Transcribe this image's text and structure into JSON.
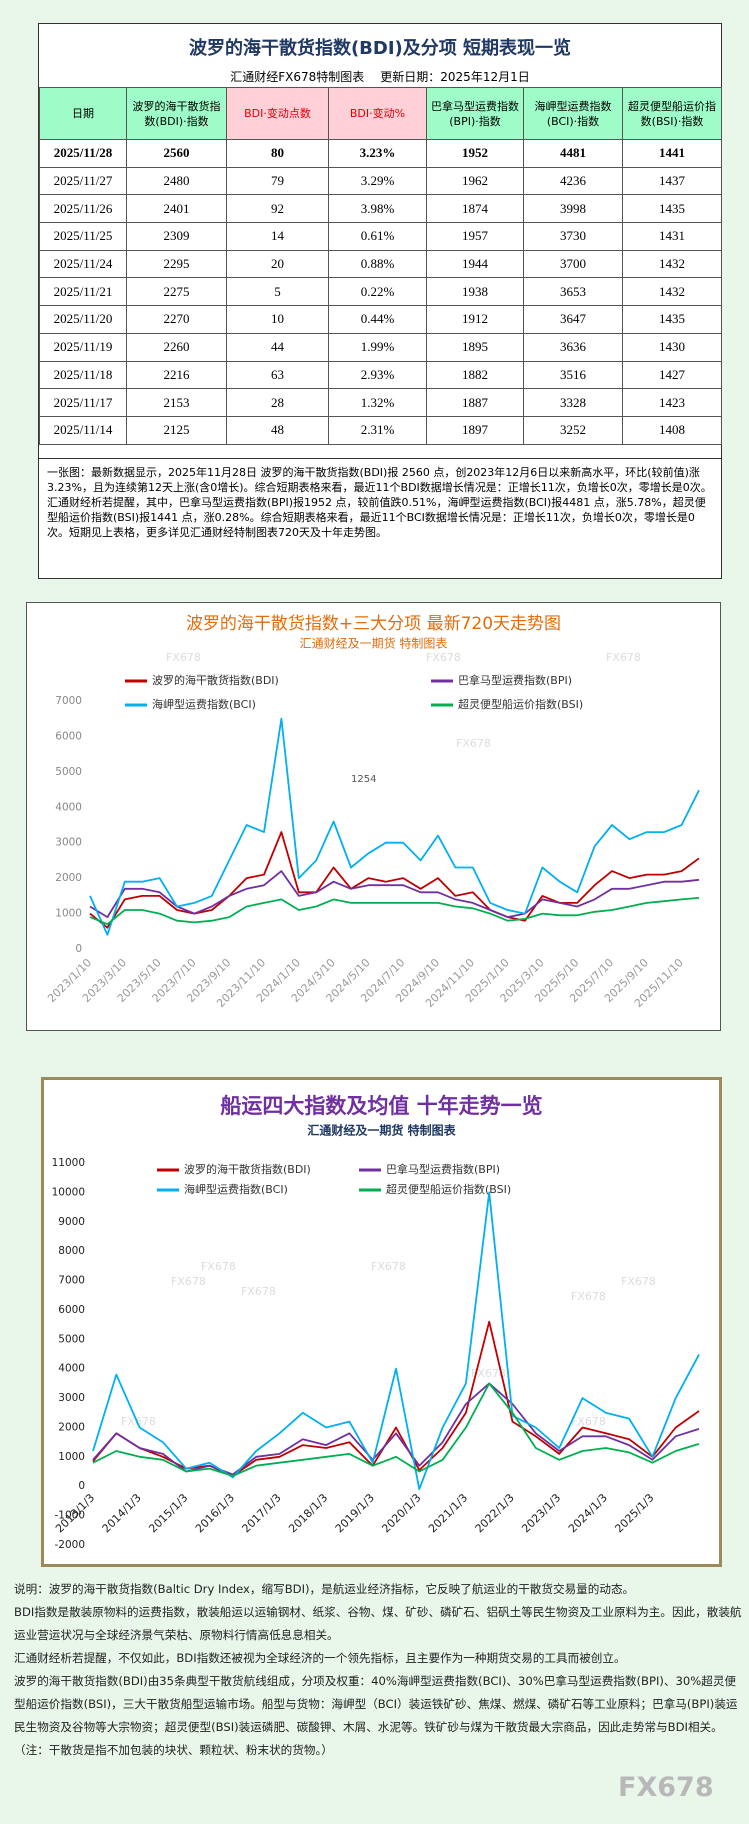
{
  "table": {
    "title": "波罗的海干散货指数(BDI)及分项  短期表现一览",
    "subtitle_left": "汇通财经FX678特制图表",
    "subtitle_right": "更新日期：2025年12月1日",
    "headers": [
      "日期",
      "波罗的海干散货指数(BDI)·指数",
      "BDI·变动点数",
      "BDI·变动%",
      "巴拿马型运费指数(BPI)·指数",
      "海岬型运费指数(BCI)·指数",
      "超灵便型船运价指数(BSI)·指数"
    ],
    "rows": [
      [
        "2025/11/28",
        "2560",
        "80",
        "3.23%",
        "1952",
        "4481",
        "1441"
      ],
      [
        "2025/11/27",
        "2480",
        "79",
        "3.29%",
        "1962",
        "4236",
        "1437"
      ],
      [
        "2025/11/26",
        "2401",
        "92",
        "3.98%",
        "1874",
        "3998",
        "1435"
      ],
      [
        "2025/11/25",
        "2309",
        "14",
        "0.61%",
        "1957",
        "3730",
        "1431"
      ],
      [
        "2025/11/24",
        "2295",
        "20",
        "0.88%",
        "1944",
        "3700",
        "1432"
      ],
      [
        "2025/11/21",
        "2275",
        "5",
        "0.22%",
        "1938",
        "3653",
        "1432"
      ],
      [
        "2025/11/20",
        "2270",
        "10",
        "0.44%",
        "1912",
        "3647",
        "1435"
      ],
      [
        "2025/11/19",
        "2260",
        "44",
        "1.99%",
        "1895",
        "3636",
        "1430"
      ],
      [
        "2025/11/18",
        "2216",
        "63",
        "2.93%",
        "1882",
        "3516",
        "1427"
      ],
      [
        "2025/11/17",
        "2153",
        "28",
        "1.32%",
        "1887",
        "3328",
        "1423"
      ],
      [
        "2025/11/14",
        "2125",
        "48",
        "2.31%",
        "1897",
        "3252",
        "1408"
      ]
    ]
  },
  "summary": "一张图：最新数据显示，2025年11月28日 波罗的海干散货指数(BDI)报 2560 点，创2023年12月6日以来新高水平，环比(较前值)涨3.23%，且为连续第12天上涨(含0增长)。综合短期表格来看，最近11个BDI数据增长情况是：正增长11次，负增长0次，零增长是0次。汇通财经析若提醒，其中，巴拿马型运费指数(BPI)报1952 点，较前值跌0.51%，海岬型运费指数(BCI)报4481 点，涨5.78%，超灵便型船运价指数(BSI)报1441 点，涨0.28%。综合短期表格来看，最近11个BCI数据增长情况是：正增长11次，负增长0次，零增长是0次。短期见上表格，更多详见汇通财经特制图表720天及十年走势图。",
  "chart_data": [
    {
      "type": "line",
      "title": "波罗的海干散货指数+三大分项  最新720天走势图",
      "subtitle": "汇通财经及一期货  特制图表",
      "annotations": [
        "1254"
      ],
      "categories": [
        "2023/1/10",
        null,
        "2023/3/10",
        null,
        "2023/5/10",
        null,
        "2023/7/10",
        null,
        "2023/9/10",
        null,
        "2023/11/10",
        null,
        "2024/1/10",
        null,
        "2024/3/10",
        null,
        "2024/5/10",
        null,
        "2024/7/10",
        null,
        "2024/9/10",
        null,
        "2024/11/10",
        null,
        "2025/1/10",
        null,
        "2025/3/10",
        null,
        "2025/5/10",
        null,
        "2025/7/10",
        null,
        "2025/9/10",
        null,
        "2025/11/10",
        null
      ],
      "ylim": [
        0,
        7000
      ],
      "yticks": [
        0,
        1000,
        2000,
        3000,
        4000,
        5000,
        6000,
        7000
      ],
      "series": [
        {
          "name": "波罗的海干散货指数(BDI)",
          "color": "#c00000",
          "values": [
            1000,
            600,
            1400,
            1500,
            1500,
            1100,
            1000,
            1100,
            1500,
            2000,
            2100,
            3300,
            1600,
            1600,
            2300,
            1700,
            2000,
            1900,
            2000,
            1700,
            2000,
            1500,
            1600,
            1100,
            900,
            800,
            1500,
            1300,
            1300,
            1800,
            2200,
            2000,
            2100,
            2100,
            2200,
            2560
          ]
        },
        {
          "name": "巴拿马型运费指数(BPI)",
          "color": "#7030a0",
          "values": [
            1200,
            900,
            1700,
            1700,
            1600,
            1200,
            1000,
            1200,
            1500,
            1700,
            1800,
            2200,
            1500,
            1600,
            1900,
            1700,
            1800,
            1800,
            1800,
            1600,
            1600,
            1400,
            1300,
            1100,
            900,
            1000,
            1400,
            1300,
            1200,
            1400,
            1700,
            1700,
            1800,
            1900,
            1900,
            1952
          ]
        },
        {
          "name": "海岬型运费指数(BCI)",
          "color": "#00b0f0",
          "values": [
            1500,
            400,
            1900,
            1900,
            2000,
            1200,
            1300,
            1500,
            2500,
            3500,
            3300,
            6500,
            2000,
            2500,
            3600,
            2300,
            2700,
            3000,
            3000,
            2500,
            3200,
            2300,
            2300,
            1300,
            1100,
            1000,
            2300,
            1900,
            1600,
            2900,
            3500,
            3100,
            3300,
            3300,
            3500,
            4481
          ]
        },
        {
          "name": "超灵便型船运价指数(BSI)",
          "color": "#00b050",
          "values": [
            900,
            700,
            1100,
            1100,
            1000,
            800,
            750,
            800,
            900,
            1200,
            1300,
            1400,
            1100,
            1200,
            1400,
            1300,
            1300,
            1300,
            1300,
            1300,
            1300,
            1200,
            1150,
            1000,
            800,
            850,
            1000,
            950,
            950,
            1050,
            1100,
            1200,
            1300,
            1350,
            1400,
            1441
          ]
        }
      ]
    },
    {
      "type": "line",
      "title": "船运四大指数及均值 十年走势一览",
      "subtitle": "汇通财经及一期货 特制图表",
      "categories": [
        "2013/1/3",
        null,
        "2014/1/3",
        null,
        "2015/1/3",
        null,
        "2016/1/3",
        null,
        "2017/1/3",
        null,
        "2018/1/3",
        null,
        "2019/1/3",
        null,
        "2020/1/3",
        null,
        "2021/1/3",
        null,
        "2022/1/3",
        null,
        "2023/1/3",
        null,
        "2024/1/3",
        null,
        "2025/1/3",
        null,
        null
      ],
      "ylim": [
        -2000,
        11000
      ],
      "yticks": [
        -2000,
        -1000,
        0,
        1000,
        2000,
        3000,
        4000,
        5000,
        6000,
        7000,
        8000,
        9000,
        10000,
        11000
      ],
      "series": [
        {
          "name": "波罗的海干散货指数(BDI)",
          "color": "#c00000",
          "values": [
            850,
            1800,
            1300,
            1000,
            600,
            700,
            350,
            900,
            1000,
            1400,
            1300,
            1500,
            700,
            2000,
            550,
            1300,
            2500,
            5600,
            2200,
            1700,
            1100,
            2000,
            1800,
            1600,
            1000,
            2000,
            2560
          ]
        },
        {
          "name": "巴拿马型运费指数(BPI)",
          "color": "#7030a0",
          "values": [
            900,
            1800,
            1300,
            1100,
            500,
            700,
            400,
            1000,
            1100,
            1600,
            1400,
            1800,
            900,
            1800,
            700,
            1500,
            2800,
            3500,
            2800,
            1800,
            1200,
            1700,
            1700,
            1400,
            900,
            1700,
            1952
          ]
        },
        {
          "name": "海岬型运费指数(BCI)",
          "color": "#00b0f0",
          "values": [
            1200,
            3800,
            2000,
            1500,
            600,
            800,
            300,
            1200,
            1800,
            2500,
            2000,
            2200,
            800,
            4000,
            -100,
            2000,
            3500,
            10000,
            2400,
            2000,
            1300,
            3000,
            2500,
            2300,
            1000,
            3000,
            4481
          ]
        },
        {
          "name": "超灵便型船运价指数(BSI)",
          "color": "#00b050",
          "values": [
            800,
            1200,
            1000,
            900,
            500,
            600,
            350,
            700,
            800,
            900,
            1000,
            1100,
            700,
            1000,
            500,
            900,
            2000,
            3500,
            2500,
            1300,
            900,
            1200,
            1300,
            1150,
            800,
            1200,
            1441
          ]
        }
      ]
    }
  ],
  "notes": [
    "说明：波罗的海干散货指数(Baltic Dry Index，缩写BDI)，是航运业经济指标，它反映了航运业的干散货交易量的动态。",
    "BDI指数是散装原物料的运费指数，散装船运以运输钢材、纸浆、谷物、煤、矿砂、磷矿石、铝矾土等民生物资及工业原料为主。因此，散装航运业营运状况与全球经济景气荣枯、原物料行情高低息息相关。",
    "汇通财经析若提醒，不仅如此，BDI指数还被视为全球经济的一个领先指标，且主要作为一种期货交易的工具而被创立。",
    "波罗的海干散货指数(BDI)由35条典型干散货航线组成，分项及权重：40%海岬型运费指数(BCI)、30%巴拿马型运费指数(BPI)、30%超灵便型船运价指数(BSI)，三大干散货船型运输市场。船型与货物：海岬型（BCI）装运铁矿砂、焦煤、燃煤、磷矿石等工业原料；巴拿马(BPI)装运民生物资及谷物等大宗物资；超灵便型(BSI)装运磷肥、碳酸钾、木屑、水泥等。铁矿砂与煤为干散货最大宗商品，因此走势常与BDI相关。（注：干散货是指不加包装的块状、颗粒状、粉末状的货物。）"
  ],
  "watermark": "FX678"
}
